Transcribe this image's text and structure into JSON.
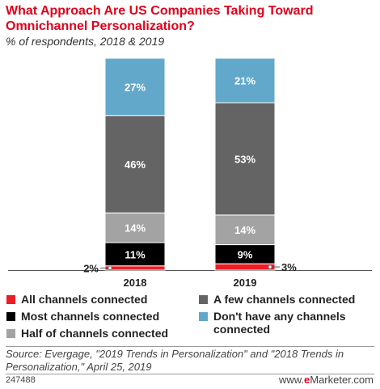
{
  "header": {
    "title": "What Approach Are US Companies Taking Toward Omnichannel Personalization?",
    "subtitle": "% of respondents, 2018 & 2019"
  },
  "chart_data": {
    "type": "bar",
    "stacked": true,
    "title": "What Approach Are US Companies Taking Toward Omnichannel Personalization?",
    "subtitle": "% of respondents, 2018 & 2019",
    "categories": [
      "2018",
      "2019"
    ],
    "ylim": [
      0,
      100
    ],
    "grid": false,
    "legend_position": "bottom",
    "series": [
      {
        "name": "All channels connected",
        "color": "#ee1c25",
        "values": [
          2,
          3
        ],
        "labels": [
          "2%",
          "3%"
        ]
      },
      {
        "name": "Most channels connected",
        "color": "#000000",
        "values": [
          11,
          9
        ],
        "labels": [
          "11%",
          "9%"
        ]
      },
      {
        "name": "Half of channels connected",
        "color": "#a3a3a3",
        "values": [
          14,
          14
        ],
        "labels": [
          "14%",
          "14%"
        ]
      },
      {
        "name": "A few channels connected",
        "color": "#646464",
        "values": [
          46,
          53
        ],
        "labels": [
          "46%",
          "53%"
        ]
      },
      {
        "name": "Don't have any channels connected",
        "color": "#62a8cb",
        "values": [
          27,
          21
        ],
        "labels": [
          "27%",
          "21%"
        ]
      }
    ]
  },
  "legend": {
    "items": [
      {
        "label": "All channels connected",
        "color": "#ee1c25"
      },
      {
        "label": "Most channels connected",
        "color": "#000000"
      },
      {
        "label": "Half of channels connected",
        "color": "#a3a3a3"
      },
      {
        "label": "A few channels connected",
        "color": "#646464"
      },
      {
        "label": "Don't have any channels connected",
        "color": "#62a8cb"
      }
    ]
  },
  "footer": {
    "source": "Source: Evergage, \"2019 Trends in Personalization\" and \"2018 Trends in Personalization,\" April 25, 2019",
    "chart_id": "247488",
    "brand_prefix": "www.",
    "brand_accent": "e",
    "brand_suffix": "Marketer.com"
  }
}
